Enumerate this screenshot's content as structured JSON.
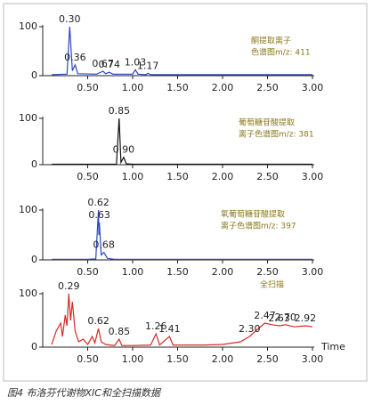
{
  "chart_data": [
    {
      "type": "line",
      "x": [
        0.1,
        0.27,
        0.3,
        0.33,
        0.36,
        0.39,
        0.6,
        0.67,
        0.7,
        0.74,
        0.78,
        1.0,
        1.03,
        1.06,
        1.15,
        1.17,
        1.2,
        1.6,
        2.0,
        2.5,
        3.0
      ],
      "series": [
        {
          "color": "#2a48c0",
          "values": [
            2,
            3,
            100,
            10,
            22,
            4,
            3,
            9,
            4,
            7,
            3,
            3,
            12,
            3,
            2,
            5,
            2,
            2,
            2,
            2,
            2
          ]
        }
      ],
      "annotations": [
        {
          "value": 0.3,
          "label": "0.30"
        },
        {
          "value": 0.36,
          "label": "0.36"
        },
        {
          "value": 0.67,
          "label": "0.67"
        },
        {
          "value": 0.74,
          "label": "0.74"
        },
        {
          "value": 1.03,
          "label": "1.03"
        },
        {
          "value": 1.17,
          "label": "1.17"
        }
      ],
      "note": [
        "酮提取离子",
        "色谱图m/z: 411"
      ],
      "xlim": [
        0,
        3
      ],
      "xticks": [
        {
          "value": 0.5,
          "label": "0.50"
        },
        {
          "value": 1,
          "label": "1.00"
        },
        {
          "value": 1.5,
          "label": "1.50"
        },
        {
          "value": 2,
          "label": "2.00"
        },
        {
          "value": 2.5,
          "label": "2.50"
        },
        {
          "value": 3,
          "label": "3.00"
        }
      ],
      "ylim": [
        0,
        100
      ],
      "yticks": [
        0,
        100
      ]
    },
    {
      "type": "line",
      "x": [
        0.1,
        0.5,
        0.82,
        0.85,
        0.87,
        0.9,
        0.93,
        1.0,
        1.5,
        2.0,
        2.5,
        3.0
      ],
      "series": [
        {
          "color": "#111111",
          "values": [
            1,
            1,
            1,
            100,
            5,
            16,
            2,
            1,
            1,
            1,
            1,
            1
          ]
        }
      ],
      "annotations": [
        {
          "value": 0.85,
          "label": "0.85"
        },
        {
          "value": 0.9,
          "label": "0.90"
        }
      ],
      "note": [
        "葡萄糖苷酸提取",
        "离子色谱图m/z: 381"
      ],
      "xlim": [
        0,
        3
      ],
      "xticks": [
        {
          "value": 0.5,
          "label": "0.50"
        },
        {
          "value": 1,
          "label": "1.00"
        },
        {
          "value": 1.5,
          "label": "1.50"
        },
        {
          "value": 2,
          "label": "2.00"
        },
        {
          "value": 2.5,
          "label": "2.50"
        },
        {
          "value": 3,
          "label": "3.00"
        }
      ],
      "ylim": [
        0,
        100
      ],
      "yticks": [
        0,
        100
      ]
    },
    {
      "type": "line",
      "x": [
        0.1,
        0.5,
        0.59,
        0.62,
        0.625,
        0.63,
        0.65,
        0.68,
        0.72,
        0.8,
        1.5,
        2.0,
        2.5,
        3.0
      ],
      "series": [
        {
          "color": "#2a48c0",
          "values": [
            1,
            1,
            2,
            100,
            50,
            75,
            10,
            15,
            3,
            1,
            1,
            1,
            1,
            1
          ]
        }
      ],
      "annotations": [
        {
          "value": 0.62,
          "label": "0.62"
        },
        {
          "value": 0.63,
          "label": "0.63"
        },
        {
          "value": 0.68,
          "label": "0.68"
        }
      ],
      "note": [
        "氧葡萄糖苷酸提取",
        "离子色谱图m/z: 397"
      ],
      "xlim": [
        0,
        3
      ],
      "xticks": [
        {
          "value": 0.5,
          "label": "0.50"
        },
        {
          "value": 1,
          "label": "1.00"
        },
        {
          "value": 1.5,
          "label": "1.50"
        },
        {
          "value": 2,
          "label": "2.00"
        },
        {
          "value": 2.5,
          "label": "2.50"
        },
        {
          "value": 3,
          "label": "3.00"
        }
      ],
      "ylim": [
        0,
        100
      ],
      "yticks": [
        0,
        100
      ]
    },
    {
      "type": "line",
      "x": [
        0.1,
        0.15,
        0.2,
        0.22,
        0.25,
        0.27,
        0.29,
        0.31,
        0.33,
        0.36,
        0.4,
        0.45,
        0.5,
        0.55,
        0.58,
        0.62,
        0.65,
        0.7,
        0.8,
        0.85,
        0.88,
        1.0,
        1.2,
        1.26,
        1.3,
        1.41,
        1.45,
        1.8,
        2.0,
        2.2,
        2.3,
        2.4,
        2.47,
        2.55,
        2.63,
        2.7,
        2.8,
        2.92,
        3.0
      ],
      "series": [
        {
          "color": "#d42a2a",
          "values": [
            5,
            30,
            45,
            20,
            60,
            40,
            100,
            50,
            85,
            30,
            10,
            15,
            5,
            20,
            8,
            35,
            10,
            5,
            3,
            15,
            3,
            3,
            4,
            25,
            4,
            20,
            4,
            4,
            5,
            10,
            20,
            35,
            45,
            42,
            40,
            42,
            38,
            40,
            38
          ]
        }
      ],
      "annotations": [
        {
          "value": 0.29,
          "label": "0.29"
        },
        {
          "value": 0.62,
          "label": "0.62"
        },
        {
          "value": 0.85,
          "label": "0.85"
        },
        {
          "value": 1.26,
          "label": "1.26"
        },
        {
          "value": 1.41,
          "label": "1.41"
        },
        {
          "value": 2.3,
          "label": "2.30"
        },
        {
          "value": 2.47,
          "label": "2.47"
        },
        {
          "value": 2.63,
          "label": "2.63"
        },
        {
          "value": 2.7,
          "label": "2.70"
        },
        {
          "value": 2.92,
          "label": "2.92"
        }
      ],
      "note": [
        "全扫描"
      ],
      "x_label": "Time",
      "xlim": [
        0,
        3
      ],
      "xticks": [
        {
          "value": 0.5,
          "label": "0.50"
        },
        {
          "value": 1,
          "label": "1.00"
        },
        {
          "value": 1.5,
          "label": "1.50"
        },
        {
          "value": 2,
          "label": "2.00"
        },
        {
          "value": 2.5,
          "label": "2.50"
        },
        {
          "value": 3,
          "label": "3.00"
        }
      ],
      "ylim": [
        0,
        100
      ],
      "yticks": [
        0,
        100
      ]
    }
  ],
  "caption": "图4 布洛芬代谢物XIC和全扫描数据"
}
